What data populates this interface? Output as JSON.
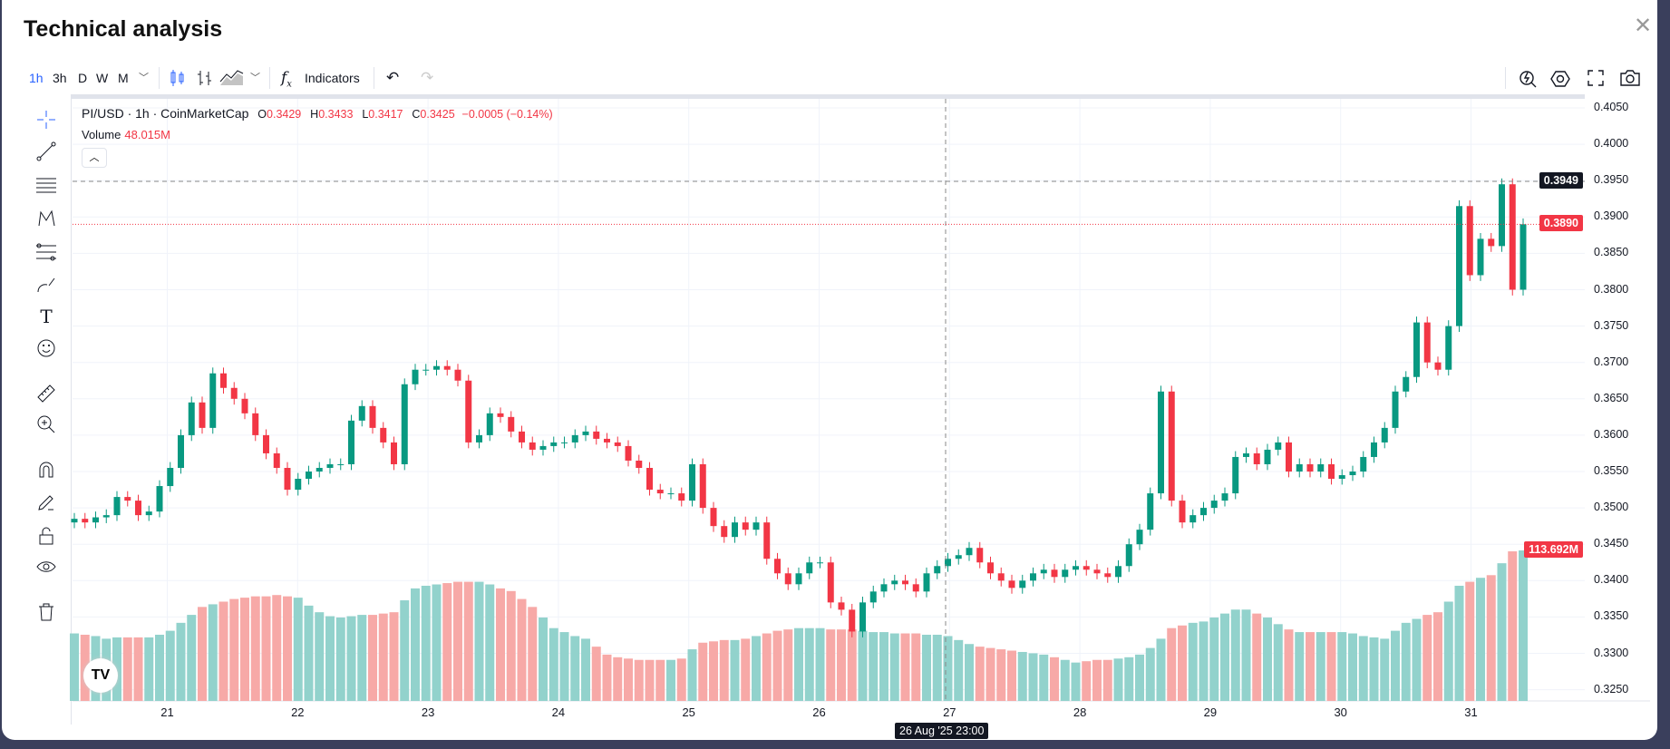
{
  "title": "Technical analysis",
  "toolbar": {
    "intervals": [
      "1h",
      "3h",
      "D",
      "W",
      "M"
    ],
    "active_interval": "1h",
    "indicators_label": "Indicators"
  },
  "legend": {
    "symbol": "PI/USD · 1h · CoinMarketCap",
    "o_key": "O",
    "o": "0.3429",
    "h_key": "H",
    "h": "0.3433",
    "l_key": "L",
    "l": "0.3417",
    "c_key": "C",
    "c": "0.3425",
    "change": "−0.0005 (−0.14%)",
    "volume_label": "Volume",
    "volume_value": "48.015M"
  },
  "colors": {
    "up": "#089981",
    "down": "#f23645",
    "vol_up": "#92d2cc",
    "vol_down": "#f7a9a7",
    "accent": "#2962ff"
  },
  "crosshair": {
    "price": "0.3949",
    "time": "26 Aug '25  23:00"
  },
  "last_price": "0.3890",
  "last_volume": "113.692M",
  "chart_data": {
    "type": "candlestick",
    "interval": "1h",
    "price_ticks": [
      "0.4050",
      "0.4000",
      "0.3950",
      "0.3900",
      "0.3850",
      "0.3800",
      "0.3750",
      "0.3700",
      "0.3650",
      "0.3600",
      "0.3550",
      "0.3500",
      "0.3450",
      "0.3400",
      "0.3350",
      "0.3300",
      "0.3250"
    ],
    "ylim": [
      0.325,
      0.405
    ],
    "time_ticks": [
      "21",
      "22",
      "23",
      "24",
      "25",
      "26",
      "27",
      "28",
      "29",
      "30",
      "31"
    ],
    "closes": [
      0.3485,
      0.348,
      0.3487,
      0.349,
      0.3515,
      0.351,
      0.349,
      0.3495,
      0.353,
      0.3555,
      0.36,
      0.3645,
      0.361,
      0.3685,
      0.3665,
      0.365,
      0.363,
      0.36,
      0.3575,
      0.3555,
      0.3525,
      0.354,
      0.355,
      0.3555,
      0.356,
      0.356,
      0.362,
      0.364,
      0.361,
      0.359,
      0.356,
      0.367,
      0.369,
      0.369,
      0.3695,
      0.369,
      0.3675,
      0.359,
      0.36,
      0.363,
      0.3625,
      0.3605,
      0.359,
      0.358,
      0.3585,
      0.359,
      0.359,
      0.36,
      0.3605,
      0.3595,
      0.359,
      0.3585,
      0.3565,
      0.3555,
      0.3525,
      0.352,
      0.352,
      0.351,
      0.356,
      0.35,
      0.3475,
      0.346,
      0.348,
      0.347,
      0.348,
      0.343,
      0.341,
      0.3395,
      0.341,
      0.3425,
      0.3425,
      0.337,
      0.336,
      0.333,
      0.337,
      0.3385,
      0.3395,
      0.34,
      0.3395,
      0.3385,
      0.341,
      0.342,
      0.343,
      0.3435,
      0.3445,
      0.3425,
      0.341,
      0.34,
      0.339,
      0.34,
      0.341,
      0.3415,
      0.3405,
      0.3415,
      0.342,
      0.3415,
      0.341,
      0.3405,
      0.342,
      0.345,
      0.347,
      0.352,
      0.366,
      0.351,
      0.348,
      0.349,
      0.35,
      0.351,
      0.352,
      0.357,
      0.3575,
      0.356,
      0.358,
      0.359,
      0.355,
      0.356,
      0.355,
      0.356,
      0.354,
      0.3545,
      0.355,
      0.357,
      0.359,
      0.361,
      0.366,
      0.368,
      0.3755,
      0.37,
      0.369,
      0.375,
      0.3915,
      0.382,
      0.387,
      0.386,
      0.3945,
      0.38,
      0.389
    ],
    "volumes_m": [
      51,
      50,
      49,
      47,
      48,
      48,
      48,
      48,
      50,
      53,
      59,
      65,
      71,
      73,
      75,
      77,
      78,
      79,
      79,
      80,
      79,
      78,
      72,
      67,
      64,
      63,
      64,
      65,
      65,
      66,
      67,
      76,
      85,
      87,
      88,
      89,
      90,
      90,
      90,
      88,
      85,
      83,
      77,
      71,
      63,
      55,
      52,
      49,
      47,
      41,
      35,
      33,
      32,
      31,
      31,
      31,
      31,
      32,
      39,
      44,
      45,
      46,
      46,
      47,
      49,
      51,
      53,
      54,
      55,
      55,
      55,
      54,
      54,
      54,
      53,
      52,
      52,
      51,
      51,
      51,
      50,
      50,
      49,
      46,
      43,
      41,
      40,
      39,
      38,
      37,
      36,
      35,
      33,
      31,
      29,
      30,
      31,
      31,
      32,
      33,
      35,
      40,
      47,
      55,
      57,
      59,
      60,
      63,
      66,
      69,
      69,
      66,
      63,
      58,
      54,
      52,
      52,
      52,
      52,
      52,
      51,
      49,
      48,
      47,
      53,
      59,
      62,
      65,
      67,
      75,
      87,
      90,
      93,
      95,
      104,
      113,
      113.692
    ]
  }
}
